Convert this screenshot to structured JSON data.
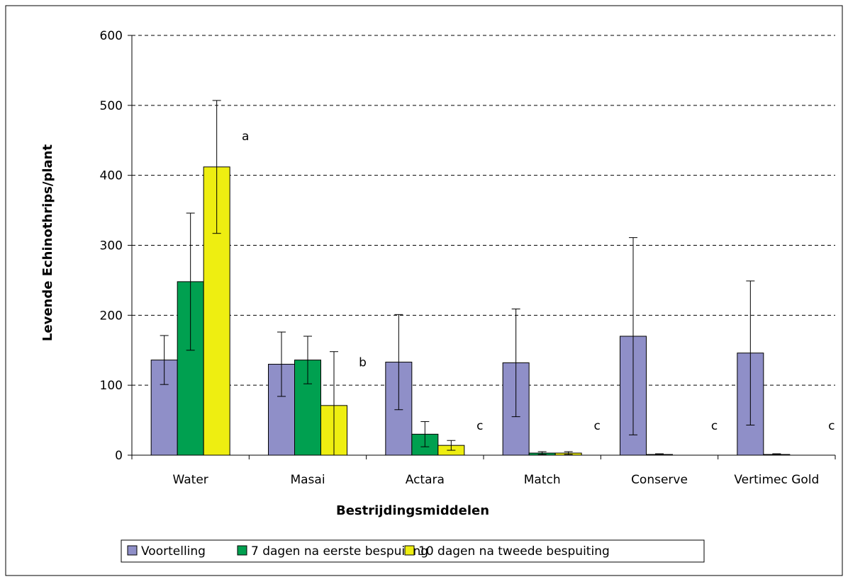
{
  "chart_data": {
    "type": "bar",
    "title": "",
    "xlabel": "Bestrijdingsmiddelen",
    "ylabel": "Levende Echinothrips/plant",
    "ylim": [
      0,
      600
    ],
    "yticks": [
      0,
      100,
      200,
      300,
      400,
      500,
      600
    ],
    "ytick_labels": [
      "0",
      "100",
      "200",
      "300",
      "400",
      "500",
      "600"
    ],
    "grid": "horizontal dashed",
    "legend_position": "bottom",
    "categories": [
      "Water",
      "Masai",
      "Actara",
      "Match",
      "Conserve",
      "Vertimec Gold"
    ],
    "series": [
      {
        "name": "Voortelling",
        "color": "#8F8FC8",
        "values": [
          136,
          130,
          133,
          132,
          170,
          146
        ],
        "error": [
          35,
          46,
          68,
          77,
          141,
          103
        ]
      },
      {
        "name": "7 dagen na eerste bespuiting",
        "color": "#00A050",
        "values": [
          248,
          136,
          30,
          3,
          1,
          1
        ],
        "error": [
          98,
          34,
          18,
          2,
          1,
          1
        ]
      },
      {
        "name": "10 dagen na tweede bespuiting",
        "color": "#EEEE11",
        "values": [
          412,
          71,
          14,
          3,
          0,
          0
        ],
        "error": [
          95,
          77,
          7,
          2,
          0,
          0
        ]
      }
    ],
    "annotations": [
      "a",
      "b",
      "c",
      "c",
      "c",
      "c"
    ]
  }
}
